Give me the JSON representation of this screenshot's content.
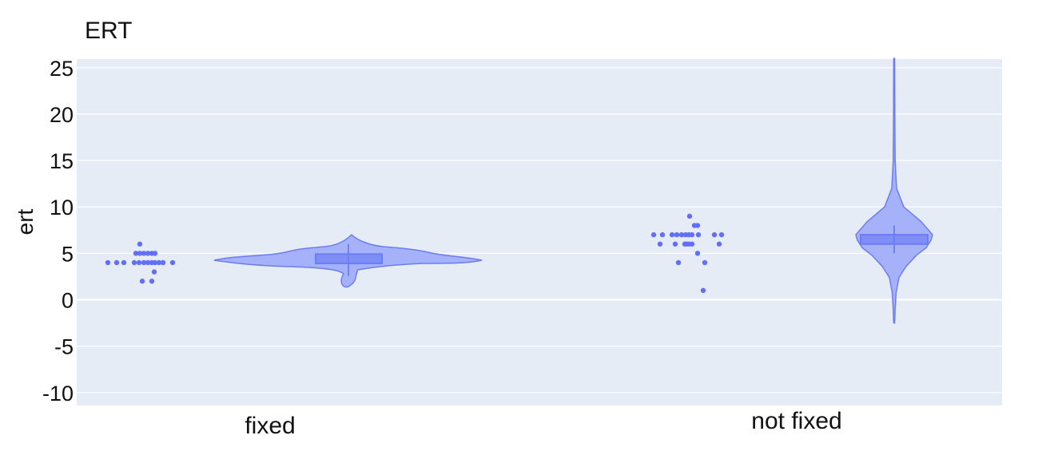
{
  "chart_data": {
    "type": "violin",
    "title": "ERT",
    "xlabel": "",
    "ylabel": "ert",
    "categories": [
      "fixed",
      "not fixed"
    ],
    "ylim": [
      -11.5,
      26
    ],
    "y_ticks": [
      25,
      20,
      15,
      10,
      5,
      0,
      -5,
      -10
    ],
    "y_tick_labels": [
      "25",
      "20",
      "15",
      "10",
      "5",
      "0",
      "-5",
      "-10"
    ],
    "grid": true,
    "legend": "none",
    "orientation": "horizontal-violin",
    "colors": {
      "plot_bg": "#e5ecf6",
      "grid": "#ffffff",
      "fill": "#a5b1f8",
      "line": "#6c7cf2",
      "points": "#636efa",
      "box_fill": "#7f8ef6"
    },
    "groups": [
      {
        "name": "fixed",
        "points": [
          4,
          4,
          4,
          4,
          4,
          4,
          4,
          4,
          4,
          4,
          4,
          4,
          5,
          5,
          5,
          5,
          5,
          5,
          6,
          3,
          2,
          2
        ],
        "box": {
          "q1": 4,
          "median": 4,
          "q3": 5,
          "whisker_low": 3,
          "whisker_high": 6
        },
        "kde_range": [
          1.2,
          6.8
        ]
      },
      {
        "name": "not fixed",
        "points": [
          7,
          7,
          7,
          7,
          7,
          7,
          7,
          7,
          7,
          7,
          7,
          6,
          6,
          6,
          6,
          6,
          6,
          6,
          8,
          8,
          9,
          5,
          4,
          4,
          1
        ],
        "box": {
          "q1": 6,
          "median": 7,
          "q3": 7,
          "whisker_low": 5,
          "whisker_high": 8
        },
        "kde_range": [
          -2.5,
          26
        ]
      }
    ]
  }
}
